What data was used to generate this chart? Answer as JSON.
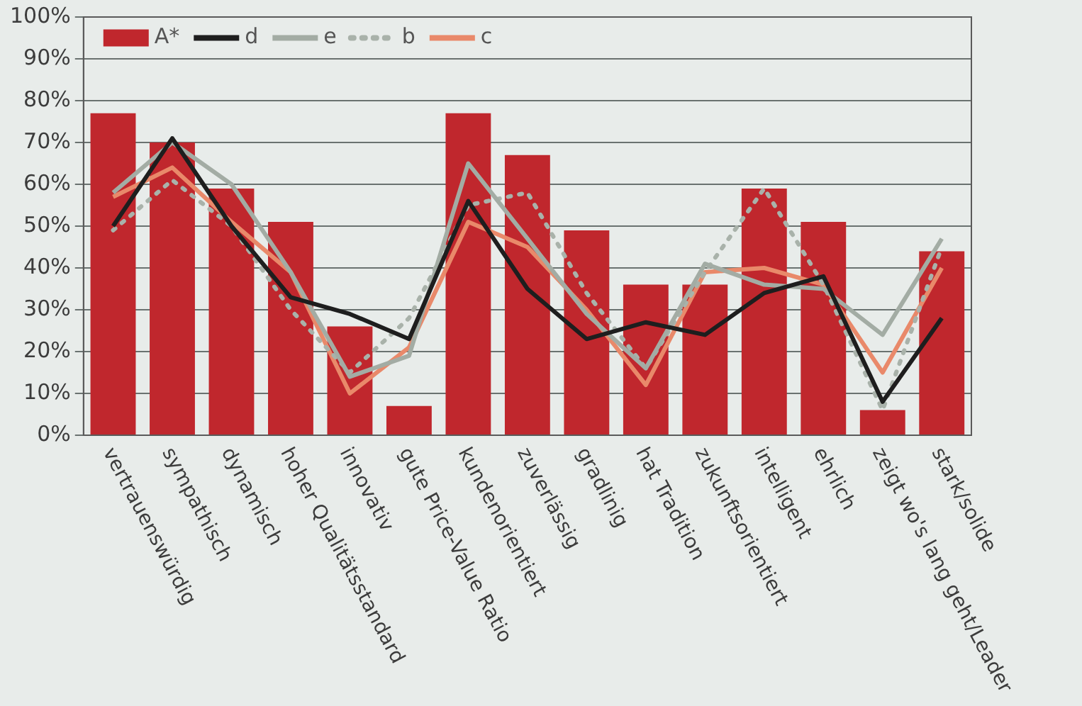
{
  "chart_data": {
    "type": "bar",
    "categories": [
      "vertrauenswürdig",
      "sympathisch",
      "dynamisch",
      "hoher Qualitätsstandard",
      "innovativ",
      "gute Price-Value Ratio",
      "kundenorientiert",
      "zuverlässig",
      "gradlinig",
      "hat Tradition",
      "zukunftsorientiert",
      "intelligent",
      "ehrlich",
      "zeigt wo's lang geht/Leader",
      "stark/solide"
    ],
    "series": [
      {
        "name": "A*",
        "color": "#c0272d",
        "values": [
          77,
          70,
          59,
          51,
          26,
          7,
          77,
          67,
          49,
          36,
          36,
          59,
          51,
          6,
          44
        ]
      },
      {
        "name": "d",
        "type": "line",
        "color": "#1e1e1e",
        "line_style": "solid",
        "values": [
          50,
          71,
          50,
          33,
          29,
          23,
          56,
          35,
          23,
          27,
          24,
          34,
          38,
          8,
          28
        ]
      },
      {
        "name": "e",
        "type": "line",
        "color": "#a3aca4",
        "line_style": "solid",
        "values": [
          58,
          70,
          60,
          39,
          14,
          19,
          65,
          47,
          29,
          16,
          41,
          36,
          35,
          24,
          47
        ]
      },
      {
        "name": "b",
        "type": "line",
        "color": "#a9b2aa",
        "line_style": "dotted",
        "values": [
          49,
          61,
          50,
          30,
          15,
          28,
          55,
          58,
          34,
          16,
          39,
          59,
          36,
          6,
          45
        ]
      },
      {
        "name": "c",
        "type": "line",
        "color": "#e9896a",
        "line_style": "solid",
        "values": [
          57,
          64,
          51,
          39,
          10,
          21,
          51,
          45,
          30,
          12,
          39,
          40,
          36,
          15,
          40
        ]
      }
    ],
    "ylim": [
      0,
      100
    ],
    "yticks": [
      {
        "value": 0,
        "label": "0%"
      },
      {
        "value": 10,
        "label": "10%"
      },
      {
        "value": 20,
        "label": "20%"
      },
      {
        "value": 30,
        "label": "30%"
      },
      {
        "value": 40,
        "label": "40%"
      },
      {
        "value": 50,
        "label": "50%"
      },
      {
        "value": 60,
        "label": "60%"
      },
      {
        "value": 70,
        "label": "70%"
      },
      {
        "value": 80,
        "label": "80%"
      },
      {
        "value": 90,
        "label": "90%"
      },
      {
        "value": 100,
        "label": "100%"
      }
    ],
    "grid": "y",
    "legend": "top left"
  }
}
